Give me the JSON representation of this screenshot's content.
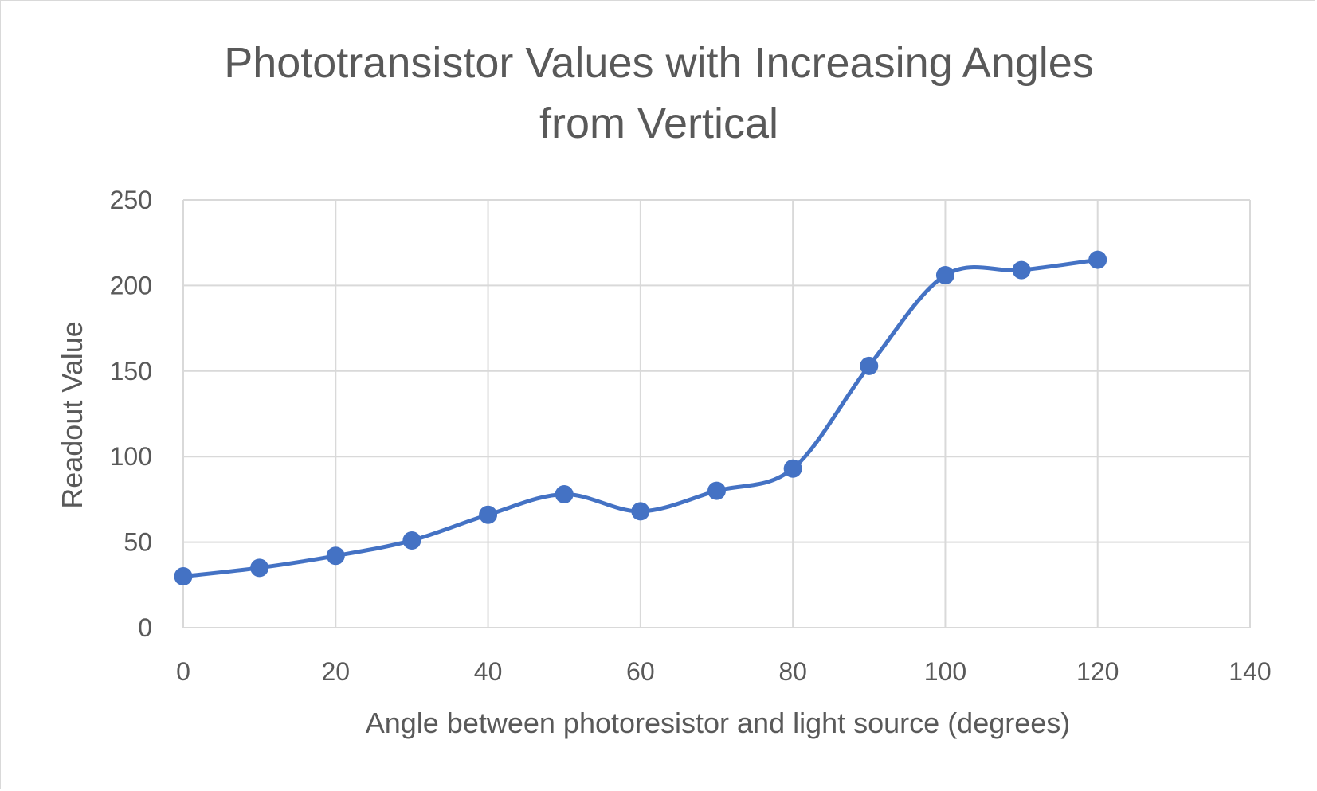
{
  "chart_data": {
    "type": "scatter",
    "title": "Phototransistor Values with Increasing Angles from Vertical",
    "title_lines": [
      "Phototransistor Values with Increasing Angles",
      "from Vertical"
    ],
    "xlabel": "Angle between photoresistor and light source (degrees)",
    "ylabel": "Readout Value",
    "xlim": [
      0,
      140
    ],
    "ylim": [
      0,
      250
    ],
    "x_ticks": [
      0,
      20,
      40,
      60,
      80,
      100,
      120,
      140
    ],
    "y_ticks": [
      0,
      50,
      100,
      150,
      200,
      250
    ],
    "grid": true,
    "smoothed_line": true,
    "legend": "none",
    "series": [
      {
        "color": "#4472c4",
        "x": [
          0,
          10,
          20,
          30,
          40,
          50,
          60,
          70,
          80,
          90,
          100,
          110,
          120
        ],
        "y": [
          30,
          35,
          42,
          51,
          66,
          78,
          68,
          80,
          93,
          153,
          206,
          209,
          215
        ]
      }
    ]
  },
  "colors": {
    "grid": "#d9d9d9",
    "text": "#595959",
    "series": "#4472c4"
  }
}
